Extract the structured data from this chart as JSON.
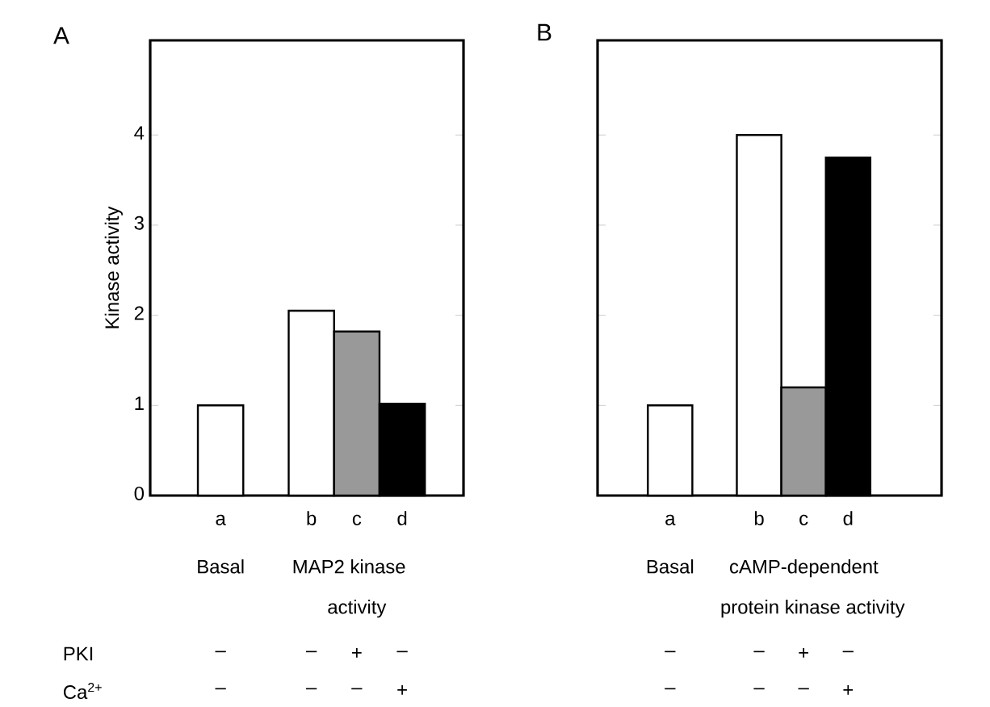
{
  "chart_data": [
    {
      "type": "bar",
      "title": "A",
      "ylabel": "Kinase activity",
      "categories": [
        "a",
        "b",
        "c",
        "d"
      ],
      "values": [
        1.0,
        2.05,
        1.82,
        1.02
      ],
      "colors": [
        "#ffffff",
        "#ffffff",
        "#999999",
        "#000000"
      ],
      "ylim": [
        0,
        5.05
      ],
      "yticks": [
        0,
        1,
        2,
        3,
        4
      ],
      "annotations": [
        "Basal",
        "MAP2 kinase",
        "activity",
        "PKI",
        "Ca$^{2+}$",
        "–",
        "–",
        "+",
        "–",
        "–",
        "–",
        "–",
        "+"
      ]
    },
    {
      "type": "bar",
      "title": "B",
      "categories": [
        "a",
        "b",
        "c",
        "d"
      ],
      "values": [
        1.0,
        4.0,
        1.2,
        3.75
      ],
      "colors": [
        "#ffffff",
        "#ffffff",
        "#999999",
        "#000000"
      ],
      "ylim": [
        0,
        5.05
      ],
      "yticks": [
        0,
        1,
        2,
        3,
        4
      ],
      "tick_labels": "x",
      "annotations": [
        "Basal",
        "cAMP-dependent",
        "protein kinase activity",
        "–",
        "–",
        "+",
        "–",
        "–",
        "–",
        "–",
        "+"
      ]
    }
  ]
}
